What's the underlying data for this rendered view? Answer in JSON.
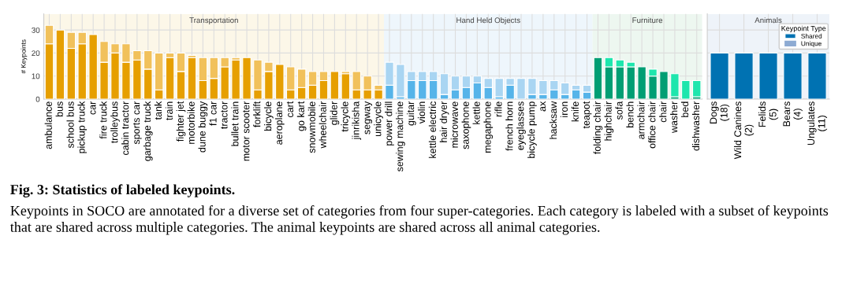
{
  "chart_data": [
    {
      "type": "bar",
      "stacked": true,
      "ylabel": "# Keypoints",
      "ylim": [
        0,
        37
      ],
      "yticks": [
        0,
        10,
        20,
        30
      ],
      "grid": true,
      "categories": [
        "ambulance",
        "bus",
        "school bus",
        "pickup truck",
        "car",
        "fire truck",
        "trolleybus",
        "cabin tractor",
        "sports car",
        "garbage truck",
        "tank",
        "train",
        "fighter jet",
        "motorbike",
        "dune buggy",
        "f1 car",
        "tractor",
        "bullet train",
        "motor scooter",
        "forklift",
        "bicycle",
        "aeroplane",
        "cart",
        "go kart",
        "snowmobile",
        "wheelchair",
        "glider",
        "tricycle",
        "jinrikisha",
        "segway",
        "unicycle",
        "power drill",
        "sewing machine",
        "guitar",
        "violin",
        "kettle electric",
        "hair dryer",
        "microwave",
        "saxophone",
        "kettle",
        "megaphone",
        "rifle",
        "french horn",
        "eyeglasses",
        "bicycle pump",
        "ax",
        "hacksaw",
        "iron",
        "knife",
        "teapot",
        "folding chair",
        "highchair",
        "sofa",
        "bench",
        "armchair",
        "office chair",
        "chair",
        "washer",
        "bed",
        "dishwasher"
      ],
      "series": [
        {
          "values": [
            24,
            30,
            22,
            24,
            28,
            16,
            20,
            16,
            17,
            13,
            4,
            18,
            12,
            18,
            8,
            9,
            14,
            17,
            18,
            4,
            12,
            15,
            4,
            5,
            6,
            8,
            12,
            11,
            4,
            4,
            4,
            6,
            1,
            8,
            8,
            8,
            2,
            4,
            5,
            7,
            5,
            1,
            6,
            0,
            2,
            2,
            4,
            2,
            4,
            3,
            18,
            14,
            14,
            14,
            14,
            10,
            12,
            1,
            0,
            1
          ],
          "colors": [
            "#e69f00",
            "#e69f00",
            "#e69f00",
            "#e69f00",
            "#e69f00",
            "#e69f00",
            "#e69f00",
            "#e69f00",
            "#e69f00",
            "#e69f00",
            "#e69f00",
            "#e69f00",
            "#e69f00",
            "#e69f00",
            "#e69f00",
            "#e69f00",
            "#e69f00",
            "#e69f00",
            "#e69f00",
            "#e69f00",
            "#e69f00",
            "#e69f00",
            "#e69f00",
            "#e69f00",
            "#e69f00",
            "#e69f00",
            "#e69f00",
            "#e69f00",
            "#e69f00",
            "#e69f00",
            "#e69f00",
            "#56b4e9",
            "#56b4e9",
            "#56b4e9",
            "#56b4e9",
            "#56b4e9",
            "#56b4e9",
            "#56b4e9",
            "#56b4e9",
            "#56b4e9",
            "#56b4e9",
            "#56b4e9",
            "#56b4e9",
            "#56b4e9",
            "#56b4e9",
            "#56b4e9",
            "#56b4e9",
            "#56b4e9",
            "#56b4e9",
            "#56b4e9",
            "#009e73",
            "#009e73",
            "#009e73",
            "#009e73",
            "#009e73",
            "#009e73",
            "#009e73",
            "#009e73",
            "#009e73",
            "#009e73"
          ]
        },
        {
          "values": [
            8,
            0,
            7,
            5,
            0,
            9,
            4,
            8,
            4,
            8,
            16,
            2,
            8,
            1,
            10,
            9,
            4,
            1,
            0,
            13,
            4,
            0,
            10,
            8,
            6,
            4,
            0,
            1,
            8,
            6,
            2,
            10,
            14,
            4,
            4,
            4,
            9,
            6,
            5,
            3,
            4,
            8,
            3,
            9,
            7,
            6,
            4,
            5,
            2,
            3,
            0,
            4,
            3,
            2,
            0,
            3,
            0,
            10,
            8,
            7
          ],
          "colors": [
            "#f1c15b",
            "#f1c15b",
            "#f1c15b",
            "#f1c15b",
            "#f1c15b",
            "#f1c15b",
            "#f1c15b",
            "#f1c15b",
            "#f1c15b",
            "#f1c15b",
            "#f1c15b",
            "#f1c15b",
            "#f1c15b",
            "#f1c15b",
            "#f1c15b",
            "#f1c15b",
            "#f1c15b",
            "#f1c15b",
            "#f1c15b",
            "#f1c15b",
            "#f1c15b",
            "#f1c15b",
            "#f1c15b",
            "#f1c15b",
            "#f1c15b",
            "#f1c15b",
            "#f1c15b",
            "#f1c15b",
            "#f1c15b",
            "#f1c15b",
            "#f1c15b",
            "#a9d5f2",
            "#a9d5f2",
            "#a9d5f2",
            "#a9d5f2",
            "#a9d5f2",
            "#a9d5f2",
            "#a9d5f2",
            "#a9d5f2",
            "#a9d5f2",
            "#a9d5f2",
            "#a9d5f2",
            "#a9d5f2",
            "#a9d5f2",
            "#a9d5f2",
            "#a9d5f2",
            "#a9d5f2",
            "#a9d5f2",
            "#a9d5f2",
            "#a9d5f2",
            "#1ee6ad",
            "#1ee6ad",
            "#1ee6ad",
            "#1ee6ad",
            "#1ee6ad",
            "#1ee6ad",
            "#1ee6ad",
            "#1ee6ad",
            "#1ee6ad",
            "#1ee6ad"
          ]
        }
      ],
      "bands": [
        {
          "axis": "x",
          "from": "ambulance",
          "to": "unicycle",
          "label": "Transportation",
          "color": "#fcf7e8"
        },
        {
          "axis": "x",
          "from": "power drill",
          "to": "teapot",
          "label": "Hand Held Objects",
          "color": "#eef6fc"
        },
        {
          "axis": "x",
          "from": "folding chair",
          "to": "dishwasher",
          "label": "Furniture",
          "color": "#edf7f0"
        }
      ],
      "annotations": [
        "Fig. 3: Statistics of labeled keypoints.",
        "Keypoints in SOCO are annotated for a diverse set of categories from four super-categories. Each category is labeled with a subset of keypoints that are shared across multiple categories. The animal keypoints are shared across all animal categories."
      ]
    },
    {
      "type": "bar",
      "stacked": true,
      "ylim": [
        0,
        37
      ],
      "yticks": [
        0,
        10,
        20,
        30
      ],
      "grid": true,
      "tick_labels": "x",
      "legend": "top right",
      "legend_title": "Keypoint Type",
      "categories": [
        "Dogs\n(18)",
        "Wild Canines\n(2)",
        "Felids\n(5)",
        "Bears\n(4)",
        "Ungulates\n(11)"
      ],
      "series": [
        {
          "name": "Shared",
          "color": "#0072b2",
          "values": [
            20,
            20,
            20,
            20,
            20
          ]
        },
        {
          "name": "Unique",
          "color": "#8eabd3",
          "values": [
            0,
            0,
            0,
            0,
            0
          ]
        }
      ],
      "bands": [
        {
          "axis": "x",
          "from": "Dogs\n(18)",
          "to": "Ungulates\n(11)",
          "label": "Animals",
          "color": "#eef3f9"
        }
      ]
    }
  ]
}
